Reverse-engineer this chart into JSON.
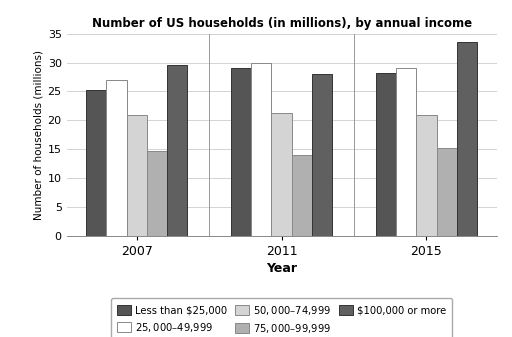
{
  "title": "Number of US households (in millions), by annual income",
  "xlabel": "Year",
  "ylabel": "Number of households (millions)",
  "years": [
    "2007",
    "2011",
    "2015"
  ],
  "categories": [
    "Less than $25,000",
    "$25,000–$49,999",
    "$50,000–$74,999",
    "$75,000–$99,999",
    "$100,000 or more"
  ],
  "values": {
    "Less than $25,000": [
      25.3,
      29.0,
      28.2
    ],
    "$25,000–$49,999": [
      27.0,
      30.0,
      29.0
    ],
    "$50,000–$74,999": [
      21.0,
      21.2,
      21.0
    ],
    "$75,000–$99,999": [
      14.7,
      14.0,
      15.3
    ],
    "$100,000 or more": [
      29.6,
      28.0,
      33.5
    ]
  },
  "colors": [
    "#555555",
    "#ffffff",
    "#d4d4d4",
    "#b0b0b0",
    "#606060"
  ],
  "edgecolors": [
    "#333333",
    "#888888",
    "#888888",
    "#888888",
    "#333333"
  ],
  "ylim": [
    0,
    35
  ],
  "yticks": [
    0,
    5,
    10,
    15,
    20,
    25,
    30,
    35
  ],
  "bar_width": 0.14,
  "background_color": "#ffffff",
  "grid_color": "#cccccc"
}
